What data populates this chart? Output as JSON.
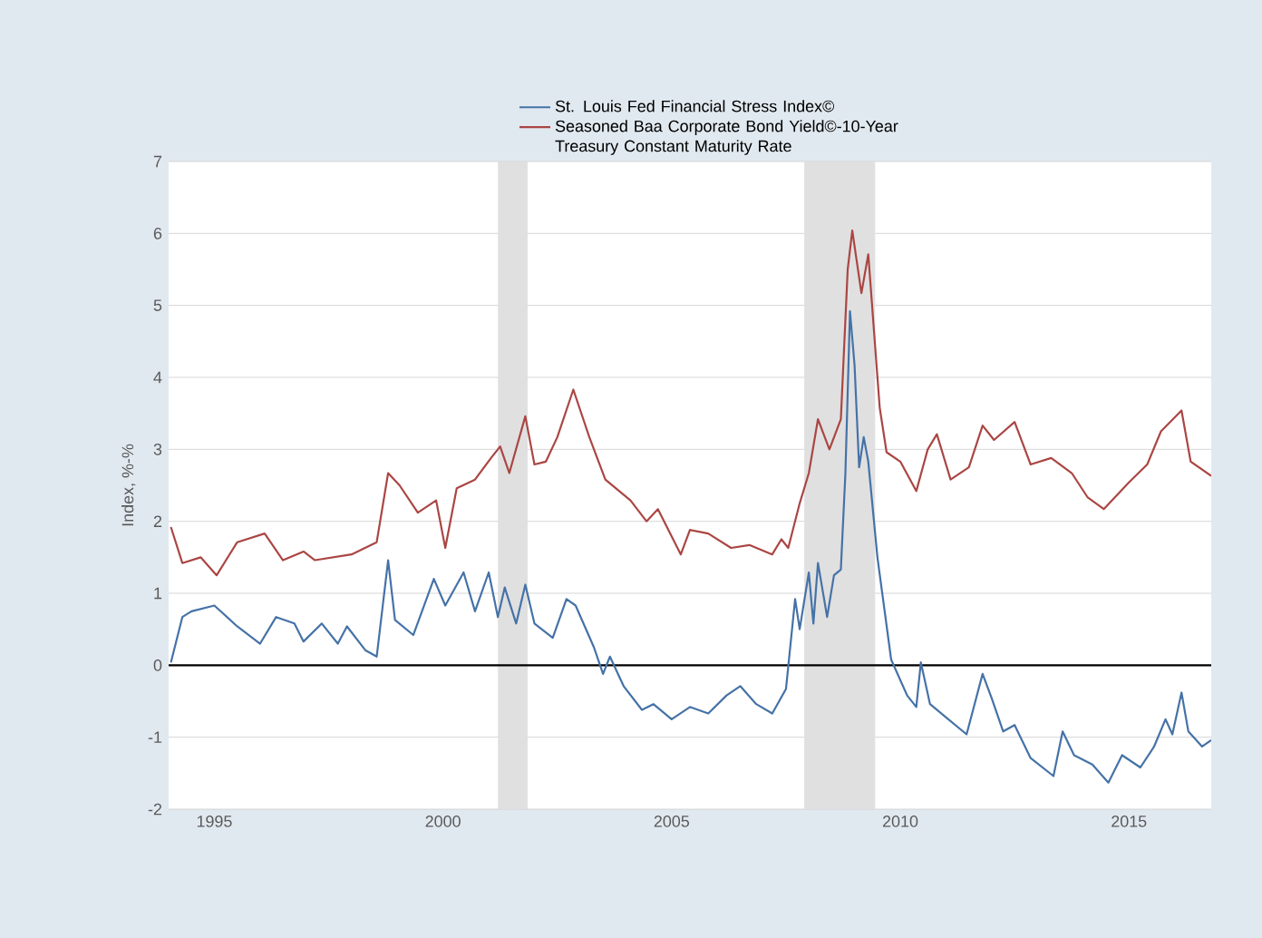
{
  "chart_data": {
    "type": "line",
    "ylabel": "Index, %-%",
    "xlim": [
      1994.0,
      2016.8
    ],
    "xticks": [
      1995,
      2000,
      2005,
      2010,
      2015
    ],
    "ylim": [
      -2,
      7
    ],
    "yticks": [
      -2,
      -1,
      0,
      1,
      2,
      3,
      4,
      5,
      6,
      7
    ],
    "grid": "y",
    "legend": "top",
    "marker": "none",
    "line_style": "solid",
    "ref_lines": [
      {
        "axis": "y",
        "value": 0,
        "color": "#000000"
      }
    ],
    "bands": [
      {
        "axis": "x",
        "from": 2001.2,
        "to": 2001.85,
        "color": "#e0e0e0"
      },
      {
        "axis": "x",
        "from": 2007.9,
        "to": 2009.45,
        "color": "#e0e0e0"
      }
    ],
    "series": [
      {
        "name": "St. Louis Fed Financial Stress Index©",
        "color": "#4572a7",
        "x": [
          1994.05,
          1994.3,
          1994.5,
          1995.0,
          1995.5,
          1996.0,
          1996.35,
          1996.75,
          1996.95,
          1997.35,
          1997.7,
          1997.9,
          1998.3,
          1998.55,
          1998.8,
          1998.95,
          1999.35,
          1999.8,
          2000.05,
          2000.45,
          2000.7,
          2001.0,
          2001.2,
          2001.35,
          2001.6,
          2001.8,
          2002.0,
          2002.4,
          2002.7,
          2002.9,
          2003.3,
          2003.5,
          2003.65,
          2003.95,
          2004.35,
          2004.6,
          2005.0,
          2005.4,
          2005.8,
          2006.2,
          2006.5,
          2006.85,
          2007.2,
          2007.5,
          2007.7,
          2007.8,
          2008.0,
          2008.1,
          2008.2,
          2008.4,
          2008.55,
          2008.7,
          2008.8,
          2008.9,
          2009.0,
          2009.1,
          2009.2,
          2009.3,
          2009.5,
          2009.8,
          2010.15,
          2010.35,
          2010.45,
          2010.65,
          2011.05,
          2011.45,
          2011.8,
          2012.0,
          2012.25,
          2012.5,
          2012.85,
          2013.35,
          2013.55,
          2013.8,
          2014.2,
          2014.55,
          2014.85,
          2015.25,
          2015.55,
          2015.8,
          2015.95,
          2016.15,
          2016.3,
          2016.6,
          2016.8
        ],
        "values": [
          0.04,
          0.67,
          0.75,
          0.83,
          0.54,
          0.3,
          0.67,
          0.58,
          0.33,
          0.58,
          0.3,
          0.54,
          0.21,
          0.12,
          1.46,
          0.63,
          0.42,
          1.2,
          0.83,
          1.29,
          0.75,
          1.29,
          0.67,
          1.08,
          0.58,
          1.12,
          0.58,
          0.38,
          0.92,
          0.83,
          0.25,
          -0.12,
          0.12,
          -0.29,
          -0.62,
          -0.54,
          -0.75,
          -0.58,
          -0.67,
          -0.42,
          -0.29,
          -0.54,
          -0.67,
          -0.33,
          0.92,
          0.5,
          1.29,
          0.58,
          1.42,
          0.67,
          1.25,
          1.33,
          2.67,
          4.92,
          4.17,
          2.75,
          3.17,
          2.83,
          1.5,
          0.08,
          -0.42,
          -0.58,
          0.04,
          -0.54,
          -0.75,
          -0.96,
          -0.12,
          -0.46,
          -0.92,
          -0.83,
          -1.29,
          -1.54,
          -0.92,
          -1.25,
          -1.38,
          -1.63,
          -1.25,
          -1.42,
          -1.13,
          -0.75,
          -0.96,
          -0.38,
          -0.92,
          -1.13,
          -1.04
        ]
      },
      {
        "name": "Seasoned Baa Corporate Bond Yield©-10-Year Treasury Constant Maturity Rate",
        "color": "#aa4643",
        "x": [
          1994.05,
          1994.3,
          1994.7,
          1995.05,
          1995.5,
          1996.1,
          1996.5,
          1996.95,
          1997.2,
          1998.0,
          1998.55,
          1998.8,
          1999.05,
          1999.45,
          1999.85,
          2000.05,
          2000.3,
          2000.7,
          2001.05,
          2001.25,
          2001.45,
          2001.8,
          2002.0,
          2002.25,
          2002.5,
          2002.85,
          2003.2,
          2003.55,
          2004.1,
          2004.45,
          2004.7,
          2005.2,
          2005.4,
          2005.8,
          2006.3,
          2006.7,
          2007.2,
          2007.4,
          2007.55,
          2007.8,
          2008.0,
          2008.2,
          2008.45,
          2008.7,
          2008.85,
          2008.95,
          2009.15,
          2009.3,
          2009.55,
          2009.7,
          2010.0,
          2010.35,
          2010.6,
          2010.8,
          2011.1,
          2011.5,
          2011.8,
          2012.05,
          2012.5,
          2012.85,
          2013.3,
          2013.75,
          2014.1,
          2014.45,
          2015.0,
          2015.4,
          2015.7,
          2016.15,
          2016.35,
          2016.8
        ],
        "values": [
          1.92,
          1.42,
          1.5,
          1.25,
          1.71,
          1.83,
          1.46,
          1.58,
          1.46,
          1.54,
          1.71,
          2.67,
          2.5,
          2.12,
          2.29,
          1.63,
          2.46,
          2.58,
          2.88,
          3.04,
          2.67,
          3.46,
          2.79,
          2.83,
          3.17,
          3.83,
          3.17,
          2.58,
          2.29,
          2.0,
          2.17,
          1.54,
          1.88,
          1.83,
          1.63,
          1.67,
          1.54,
          1.75,
          1.63,
          2.25,
          2.67,
          3.42,
          3.0,
          3.42,
          5.5,
          6.04,
          5.17,
          5.71,
          3.58,
          2.96,
          2.83,
          2.42,
          3.0,
          3.21,
          2.58,
          2.75,
          3.33,
          3.13,
          3.38,
          2.79,
          2.88,
          2.67,
          2.33,
          2.17,
          2.54,
          2.79,
          3.25,
          3.54,
          2.83,
          2.63
        ]
      }
    ]
  }
}
